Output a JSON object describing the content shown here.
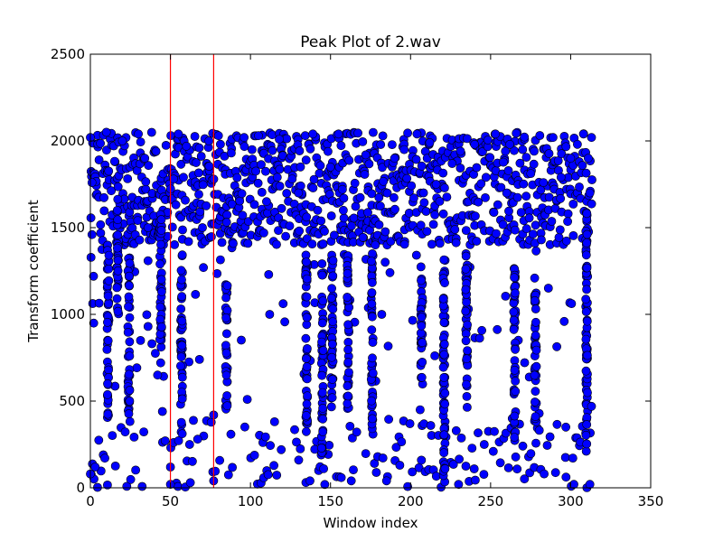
{
  "chart_data": {
    "type": "scatter",
    "title": "Peak Plot of 2.wav",
    "xlabel": "Window index",
    "ylabel": "Transform coefficient",
    "xlim": [
      0,
      350
    ],
    "ylim": [
      0,
      2500
    ],
    "xticks": [
      "0",
      "50",
      "100",
      "150",
      "200",
      "250",
      "300",
      "350"
    ],
    "yticks": [
      "0",
      "500",
      "1000",
      "1500",
      "2000",
      "2500"
    ],
    "grid": false,
    "legend": "none",
    "marker_color": "#0000ff",
    "vlines": [
      {
        "x": 50,
        "color": "#ff0000"
      },
      {
        "x": 77,
        "color": "#ff0000"
      }
    ],
    "column_bands": [
      {
        "x": 11,
        "y": [
          400,
          1400
        ]
      },
      {
        "x": 17,
        "y": [
          1000,
          1750
        ]
      },
      {
        "x": 24,
        "y": [
          400,
          1350
        ]
      },
      {
        "x": 44,
        "y": [
          700,
          1600
        ]
      },
      {
        "x": 57,
        "y": [
          300,
          1350
        ]
      },
      {
        "x": 85,
        "y": [
          450,
          1200
        ]
      },
      {
        "x": 135,
        "y": [
          300,
          1400
        ]
      },
      {
        "x": 145,
        "y": [
          200,
          1300
        ]
      },
      {
        "x": 151,
        "y": [
          450,
          1350
        ]
      },
      {
        "x": 161,
        "y": [
          450,
          1350
        ]
      },
      {
        "x": 176,
        "y": [
          300,
          1350
        ]
      },
      {
        "x": 207,
        "y": [
          550,
          1300
        ]
      },
      {
        "x": 221,
        "y": [
          50,
          1350
        ]
      },
      {
        "x": 235,
        "y": [
          450,
          1350
        ]
      },
      {
        "x": 265,
        "y": [
          250,
          1300
        ]
      },
      {
        "x": 278,
        "y": [
          300,
          1150
        ]
      },
      {
        "x": 310,
        "y": [
          150,
          1600
        ]
      }
    ],
    "sample_points": [
      {
        "x": 0,
        "y": 2020
      },
      {
        "x": 1,
        "y": 1760
      },
      {
        "x": 1,
        "y": 1460
      },
      {
        "x": 2,
        "y": 1220
      },
      {
        "x": 0,
        "y": 80
      },
      {
        "x": 3,
        "y": 120
      },
      {
        "x": 10,
        "y": 2050
      },
      {
        "x": 20,
        "y": 2000
      },
      {
        "x": 30,
        "y": 2040
      },
      {
        "x": 34,
        "y": 1900
      },
      {
        "x": 36,
        "y": 1500
      },
      {
        "x": 36,
        "y": 930
      },
      {
        "x": 41,
        "y": 1940
      },
      {
        "x": 42,
        "y": 650
      },
      {
        "x": 45,
        "y": 440
      },
      {
        "x": 50,
        "y": 120
      },
      {
        "x": 50,
        "y": 20
      },
      {
        "x": 52,
        "y": 1780
      },
      {
        "x": 55,
        "y": 2040
      },
      {
        "x": 60,
        "y": 1970
      },
      {
        "x": 62,
        "y": 250
      },
      {
        "x": 67,
        "y": 280
      },
      {
        "x": 68,
        "y": 1960
      },
      {
        "x": 70,
        "y": 1500
      },
      {
        "x": 74,
        "y": 2000
      },
      {
        "x": 77,
        "y": 420
      },
      {
        "x": 77,
        "y": 40
      },
      {
        "x": 80,
        "y": 2030
      },
      {
        "x": 88,
        "y": 1930
      },
      {
        "x": 96,
        "y": 2020
      },
      {
        "x": 98,
        "y": 510
      },
      {
        "x": 101,
        "y": 1950
      },
      {
        "x": 105,
        "y": 2030
      },
      {
        "x": 110,
        "y": 1650
      },
      {
        "x": 112,
        "y": 1000
      },
      {
        "x": 118,
        "y": 2010
      },
      {
        "x": 122,
        "y": 1450
      },
      {
        "x": 130,
        "y": 1700
      },
      {
        "x": 139,
        "y": 2040
      },
      {
        "x": 142,
        "y": 1600
      },
      {
        "x": 150,
        "y": 1850
      },
      {
        "x": 155,
        "y": 2040
      },
      {
        "x": 158,
        "y": 1600
      },
      {
        "x": 163,
        "y": 40
      },
      {
        "x": 172,
        "y": 1920
      },
      {
        "x": 178,
        "y": 1400
      },
      {
        "x": 182,
        "y": 1000
      },
      {
        "x": 185,
        "y": 40
      },
      {
        "x": 190,
        "y": 1900
      },
      {
        "x": 196,
        "y": 1950
      },
      {
        "x": 204,
        "y": 2040
      },
      {
        "x": 206,
        "y": 450
      },
      {
        "x": 212,
        "y": 1990
      },
      {
        "x": 216,
        "y": 1750
      },
      {
        "x": 226,
        "y": 1870
      },
      {
        "x": 230,
        "y": 20
      },
      {
        "x": 240,
        "y": 1980
      },
      {
        "x": 246,
        "y": 250
      },
      {
        "x": 253,
        "y": 2040
      },
      {
        "x": 260,
        "y": 1700
      },
      {
        "x": 262,
        "y": 1980
      },
      {
        "x": 270,
        "y": 1950
      },
      {
        "x": 283,
        "y": 1760
      },
      {
        "x": 289,
        "y": 2020
      },
      {
        "x": 294,
        "y": 1790
      },
      {
        "x": 297,
        "y": 350
      },
      {
        "x": 300,
        "y": 1900
      },
      {
        "x": 302,
        "y": 20
      },
      {
        "x": 308,
        "y": 2040
      },
      {
        "x": 311,
        "y": 1900
      },
      {
        "x": 312,
        "y": 1700
      },
      {
        "x": 313,
        "y": 2020
      },
      {
        "x": 313,
        "y": 470
      },
      {
        "x": 312,
        "y": 20
      }
    ]
  }
}
